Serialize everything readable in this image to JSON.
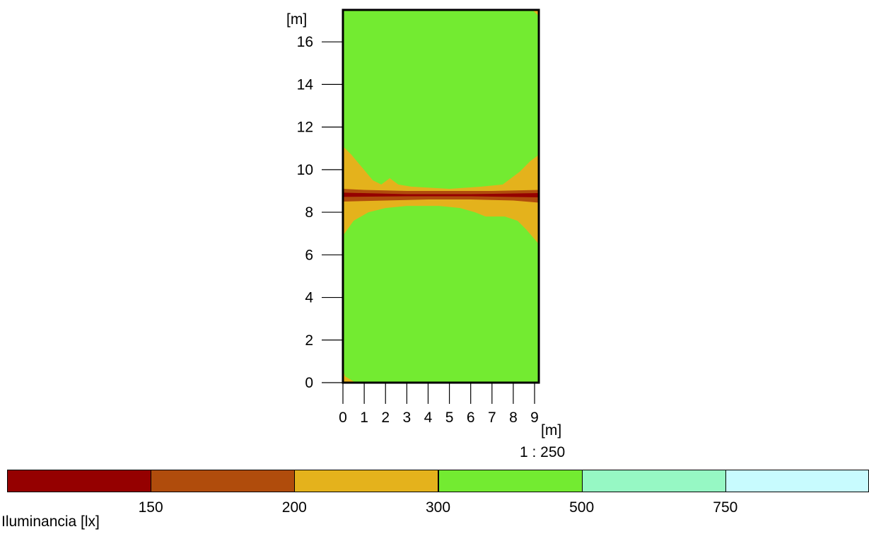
{
  "chart_data": {
    "type": "heatmap",
    "title": "",
    "x_unit_label": "[m]",
    "y_unit_label": "[m]",
    "x_ticks": [
      0,
      1,
      2,
      3,
      4,
      5,
      6,
      7,
      8,
      9
    ],
    "y_ticks": [
      0,
      2,
      4,
      6,
      8,
      10,
      12,
      14,
      16
    ],
    "xlim": [
      0,
      9.2
    ],
    "ylim": [
      0,
      17.5
    ],
    "scale": "1 : 250",
    "colorbar": {
      "label": "Iluminancia [lx]",
      "thresholds": [
        150,
        200,
        300,
        500,
        750
      ],
      "bands": [
        {
          "range": "< 150",
          "color": "#950000"
        },
        {
          "range": "150 - 200",
          "color": "#b04c0c"
        },
        {
          "range": "200 - 300",
          "color": "#e4b21c"
        },
        {
          "range": "300 - 500",
          "color": "#73eb31"
        },
        {
          "range": "500 - 750",
          "color": "#96f8c4"
        },
        {
          "range": "> 750",
          "color": "#c8fbfe"
        }
      ]
    },
    "regions": [
      {
        "band": "200 - 300",
        "polygon": [
          [
            0,
            6.9
          ],
          [
            0.5,
            7.6
          ],
          [
            1.2,
            8.0
          ],
          [
            2,
            8.2
          ],
          [
            3,
            8.3
          ],
          [
            4.5,
            8.3
          ],
          [
            5.5,
            8.2
          ],
          [
            6.2,
            8.0
          ],
          [
            6.7,
            7.8
          ],
          [
            7.6,
            7.8
          ],
          [
            8.2,
            7.6
          ],
          [
            8.6,
            7.2
          ],
          [
            9.2,
            6.5
          ],
          [
            9.2,
            10.7
          ],
          [
            8.8,
            10.4
          ],
          [
            8.3,
            9.9
          ],
          [
            7.5,
            9.3
          ],
          [
            6.5,
            9.2
          ],
          [
            5,
            9.1
          ],
          [
            3.2,
            9.2
          ],
          [
            2.6,
            9.3
          ],
          [
            2.2,
            9.6
          ],
          [
            1.8,
            9.3
          ],
          [
            1.4,
            9.5
          ],
          [
            0.9,
            10.1
          ],
          [
            0.4,
            10.7
          ],
          [
            0,
            11.1
          ]
        ]
      },
      {
        "band": "150 - 200",
        "polygon": [
          [
            0,
            8.5
          ],
          [
            2,
            8.55
          ],
          [
            4,
            8.6
          ],
          [
            6,
            8.6
          ],
          [
            8,
            8.55
          ],
          [
            9.2,
            8.45
          ],
          [
            9.2,
            9.05
          ],
          [
            7,
            9.0
          ],
          [
            5,
            9.0
          ],
          [
            3,
            9.0
          ],
          [
            1,
            9.05
          ],
          [
            0,
            9.1
          ]
        ]
      },
      {
        "band": "< 150",
        "polygon": [
          [
            0,
            8.72
          ],
          [
            3,
            8.75
          ],
          [
            6,
            8.75
          ],
          [
            9.2,
            8.7
          ],
          [
            9.2,
            8.9
          ],
          [
            6,
            8.85
          ],
          [
            3,
            8.85
          ],
          [
            0,
            8.92
          ]
        ]
      },
      {
        "band": "200 - 300",
        "polygon": [
          [
            0,
            0
          ],
          [
            0.6,
            0
          ],
          [
            0.1,
            0.3
          ],
          [
            0,
            0.6
          ]
        ]
      },
      {
        "band": "200 - 300",
        "polygon": [
          [
            8.9,
            17.5
          ],
          [
            9.2,
            17.5
          ],
          [
            9.2,
            17.2
          ]
        ]
      }
    ]
  }
}
